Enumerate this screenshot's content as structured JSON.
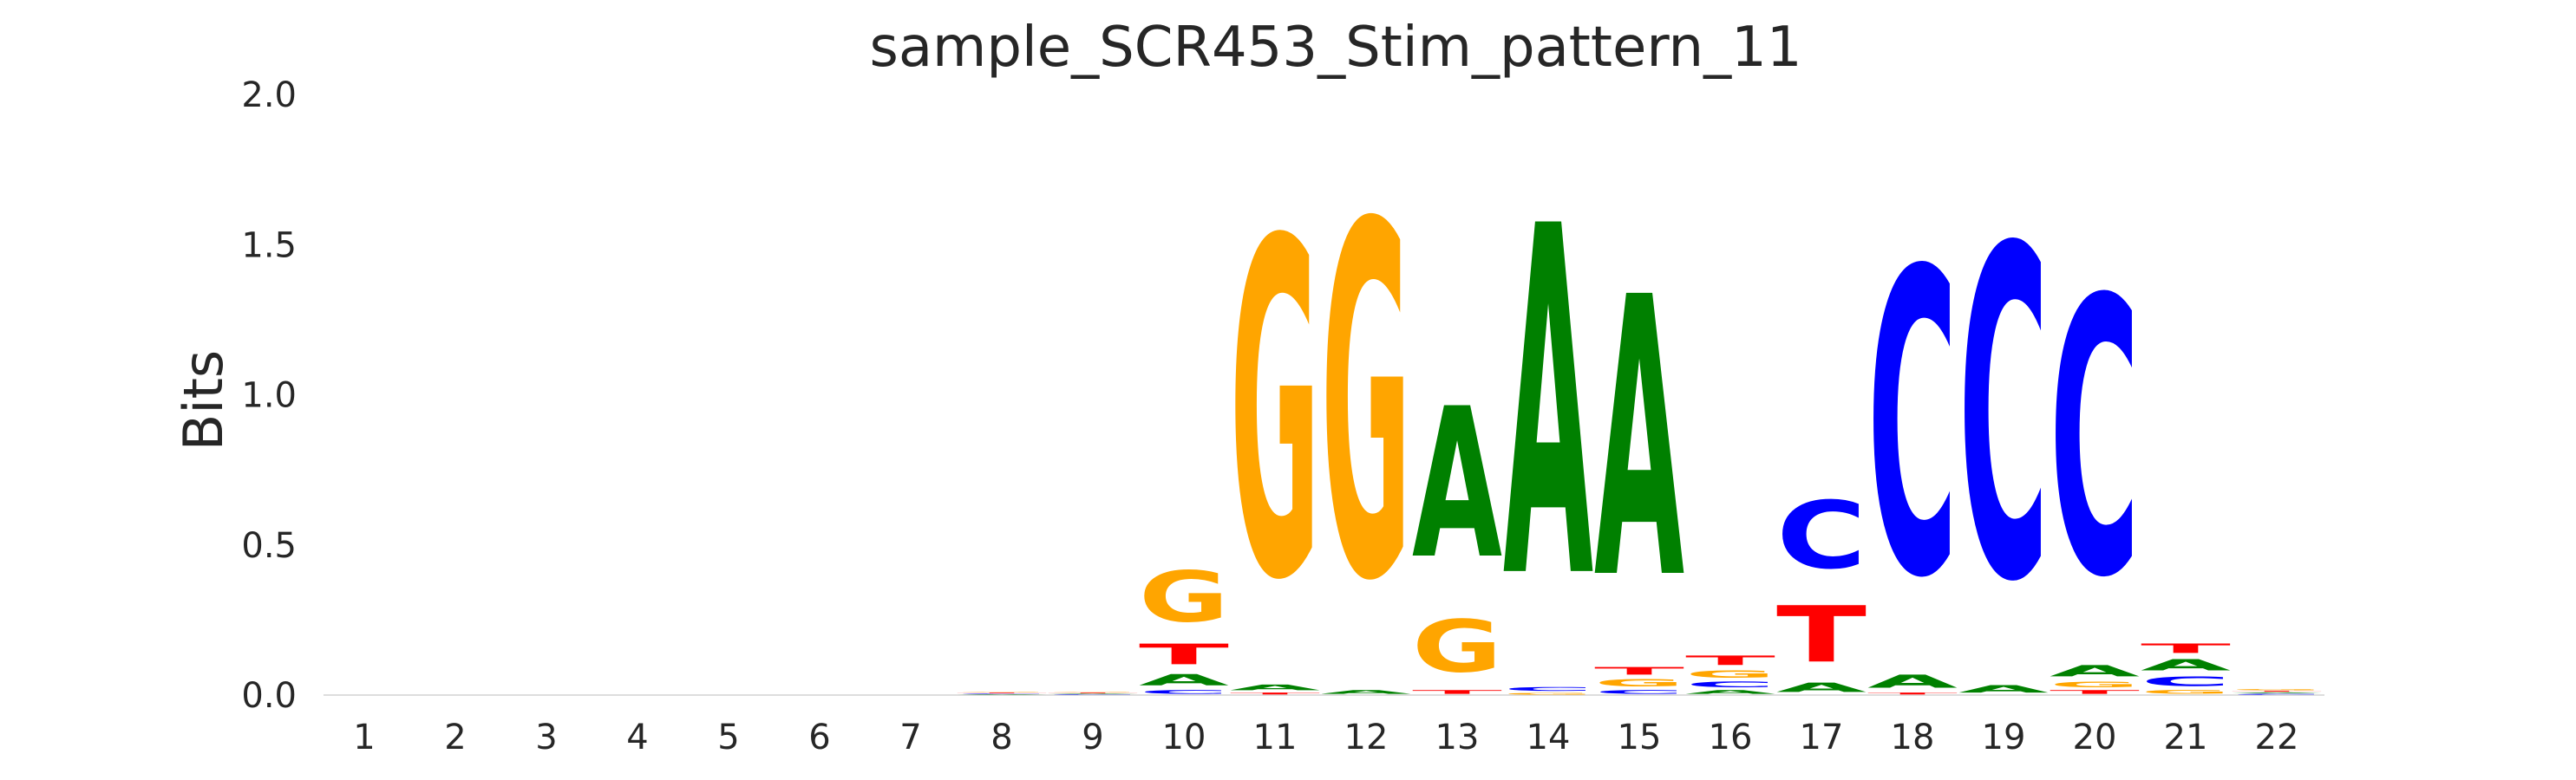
{
  "chart_data": {
    "type": "sequence-logo",
    "title": "sample_SCR453_Stim_pattern_11",
    "xlabel": "",
    "ylabel": "Bits",
    "ylim": [
      0,
      2
    ],
    "yticks": [
      "0.0",
      "0.5",
      "1.0",
      "1.5",
      "2.0"
    ],
    "positions": [
      "1",
      "2",
      "3",
      "4",
      "5",
      "6",
      "7",
      "8",
      "9",
      "10",
      "11",
      "12",
      "13",
      "14",
      "15",
      "16",
      "17",
      "18",
      "19",
      "20",
      "21",
      "22"
    ],
    "colors": {
      "A": "#008000",
      "C": "#0000ff",
      "G": "#ffa500",
      "T": "#ff0000"
    },
    "columns": [
      {
        "pos": "1",
        "stack": []
      },
      {
        "pos": "2",
        "stack": []
      },
      {
        "pos": "3",
        "stack": []
      },
      {
        "pos": "4",
        "stack": []
      },
      {
        "pos": "5",
        "stack": []
      },
      {
        "pos": "6",
        "stack": []
      },
      {
        "pos": "7",
        "stack": []
      },
      {
        "pos": "8",
        "stack": [
          {
            "letter": "A",
            "bits": 0.003
          },
          {
            "letter": "C",
            "bits": 0.003
          },
          {
            "letter": "T",
            "bits": 0.003
          },
          {
            "letter": "G",
            "bits": 0.003
          }
        ]
      },
      {
        "pos": "9",
        "stack": [
          {
            "letter": "C",
            "bits": 0.003
          },
          {
            "letter": "A",
            "bits": 0.003
          },
          {
            "letter": "T",
            "bits": 0.003
          },
          {
            "letter": "G",
            "bits": 0.003
          }
        ]
      },
      {
        "pos": "10",
        "stack": [
          {
            "letter": "C",
            "bits": 0.02
          },
          {
            "letter": "A",
            "bits": 0.06
          },
          {
            "letter": "T",
            "bits": 0.11
          },
          {
            "letter": "G",
            "bits": 0.27
          }
        ]
      },
      {
        "pos": "11",
        "stack": [
          {
            "letter": "T",
            "bits": 0.01
          },
          {
            "letter": "A",
            "bits": 0.03
          },
          {
            "letter": "G",
            "bits": 1.79
          }
        ]
      },
      {
        "pos": "12",
        "stack": [
          {
            "letter": "A",
            "bits": 0.02
          },
          {
            "letter": "G",
            "bits": 1.88
          }
        ]
      },
      {
        "pos": "13",
        "stack": [
          {
            "letter": "T",
            "bits": 0.02
          },
          {
            "letter": "G",
            "bits": 0.28
          },
          {
            "letter": "A",
            "bits": 0.8
          }
        ]
      },
      {
        "pos": "14",
        "stack": [
          {
            "letter": "G",
            "bits": 0.01
          },
          {
            "letter": "C",
            "bits": 0.02
          },
          {
            "letter": "A",
            "bits": 1.86
          }
        ]
      },
      {
        "pos": "15",
        "stack": [
          {
            "letter": "C",
            "bits": 0.02
          },
          {
            "letter": "G",
            "bits": 0.04
          },
          {
            "letter": "T",
            "bits": 0.04
          },
          {
            "letter": "A",
            "bits": 1.49
          }
        ]
      },
      {
        "pos": "16",
        "stack": [
          {
            "letter": "A",
            "bits": 0.02
          },
          {
            "letter": "C",
            "bits": 0.03
          },
          {
            "letter": "G",
            "bits": 0.04
          },
          {
            "letter": "T",
            "bits": 0.05
          }
        ]
      },
      {
        "pos": "17",
        "stack": [
          {
            "letter": "A",
            "bits": 0.05
          },
          {
            "letter": "T",
            "bits": 0.3
          },
          {
            "letter": "C",
            "bits": 0.36
          }
        ]
      },
      {
        "pos": "18",
        "stack": [
          {
            "letter": "T",
            "bits": 0.01
          },
          {
            "letter": "A",
            "bits": 0.07
          },
          {
            "letter": "C",
            "bits": 1.62
          }
        ]
      },
      {
        "pos": "19",
        "stack": [
          {
            "letter": "A",
            "bits": 0.04
          },
          {
            "letter": "C",
            "bits": 1.76
          }
        ]
      },
      {
        "pos": "20",
        "stack": [
          {
            "letter": "T",
            "bits": 0.02
          },
          {
            "letter": "G",
            "bits": 0.03
          },
          {
            "letter": "A",
            "bits": 0.06
          },
          {
            "letter": "C",
            "bits": 1.47
          }
        ]
      },
      {
        "pos": "21",
        "stack": [
          {
            "letter": "G",
            "bits": 0.02
          },
          {
            "letter": "C",
            "bits": 0.05
          },
          {
            "letter": "A",
            "bits": 0.06
          },
          {
            "letter": "T",
            "bits": 0.05
          }
        ]
      },
      {
        "pos": "22",
        "stack": [
          {
            "letter": "C",
            "bits": 0.005
          },
          {
            "letter": "A",
            "bits": 0.005
          },
          {
            "letter": "T",
            "bits": 0.005
          },
          {
            "letter": "G",
            "bits": 0.005
          }
        ]
      }
    ]
  }
}
